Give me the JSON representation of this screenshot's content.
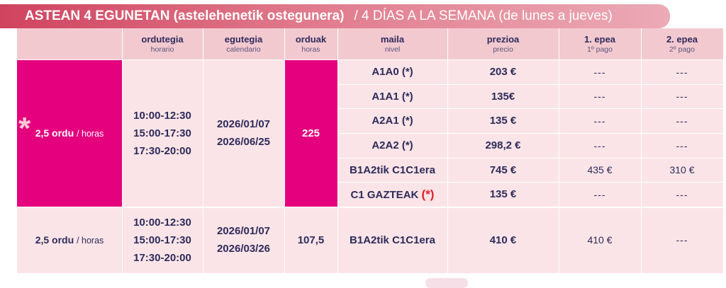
{
  "banner": {
    "title_bold": "ASTEAN 4 EGUNETAN (astelehenetik ostegunera)",
    "title_rest": "/ 4 DÍAS A LA SEMANA (de lunes a jueves)"
  },
  "headers": [
    {
      "eu": "ordutegia",
      "es": "horario"
    },
    {
      "eu": "egutegia",
      "es": "calendario"
    },
    {
      "eu": "orduak",
      "es": "horas"
    },
    {
      "eu": "maila",
      "es": "nivel"
    },
    {
      "eu": "prezioa",
      "es": "precio"
    },
    {
      "eu": "1. epea",
      "es": "1º pago"
    },
    {
      "eu": "2. epea",
      "es": "2º pago"
    }
  ],
  "group1": {
    "duration_bold": "2,5 ordu",
    "duration_rest": "/ horas",
    "times": [
      "10:00-12:30",
      "15:00-17:30",
      "17:30-20:00"
    ],
    "dates": [
      "2026/01/07",
      "2026/06/25"
    ],
    "hours": "225",
    "rows": [
      {
        "level": "A1A0",
        "mark": "(*)",
        "price": "203 €",
        "pay1": "---",
        "pay2": "---"
      },
      {
        "level": "A1A1",
        "mark": "(*)",
        "price": "135€",
        "pay1": "---",
        "pay2": "---"
      },
      {
        "level": "A2A1",
        "mark": "(*)",
        "price": "135 €",
        "pay1": "---",
        "pay2": "---"
      },
      {
        "level": "A2A2",
        "mark": "(*)",
        "price": "298,2 €",
        "pay1": "---",
        "pay2": "---"
      },
      {
        "level": "B1A2tik C1C1era",
        "mark": "",
        "price": "745 €",
        "pay1": "435 €",
        "pay2": "310 €"
      },
      {
        "level": "C1 GAZTEAK",
        "mark": "(*)",
        "price": "135 €",
        "pay1": "---",
        "pay2": "---"
      }
    ]
  },
  "group2": {
    "duration_bold": "2,5 ordu",
    "duration_rest": "/ horas",
    "times": [
      "10:00-12:30",
      "15:00-17:30",
      "17:30-20:00"
    ],
    "dates": [
      "2026/01/07",
      "2026/03/26"
    ],
    "hours": "107,5",
    "level": "B1A2tik C1C1era",
    "price": "410 €",
    "pay1": "410 €",
    "pay2": "---"
  },
  "decor": {
    "asterisk": "*"
  },
  "colors": {
    "magenta": "#e5007e",
    "banner": "#d0435f",
    "panel": "#fbe4e7",
    "text": "#2d2a5a",
    "mark_red": "#e31e24"
  }
}
